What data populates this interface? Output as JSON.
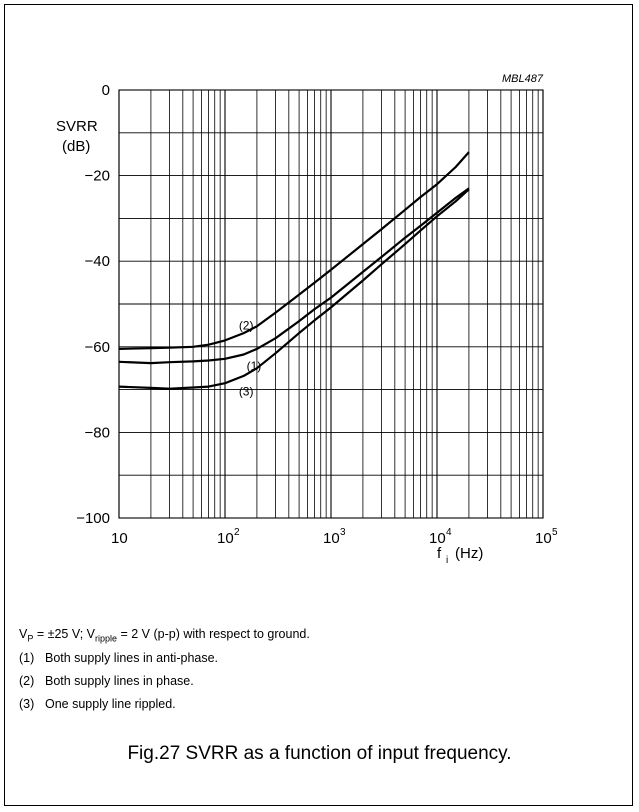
{
  "chart_data": {
    "type": "line",
    "id_code": "MBL487",
    "ylabel": "SVRR",
    "yunit": "(dB)",
    "xlabel": "f",
    "xlabel_sub": "i",
    "xunit": "(Hz)",
    "xscale": "log",
    "xlim": [
      10,
      100000
    ],
    "ylim": [
      -100,
      0
    ],
    "grid": true,
    "x_tick_labels": [
      {
        "value": 10,
        "base": "10",
        "exp": ""
      },
      {
        "value": 100,
        "base": "10",
        "exp": "2"
      },
      {
        "value": 1000,
        "base": "10",
        "exp": "3"
      },
      {
        "value": 10000,
        "base": "10",
        "exp": "4"
      },
      {
        "value": 100000,
        "base": "10",
        "exp": "5"
      }
    ],
    "y_tick_labels": [
      {
        "value": 0,
        "text": "0"
      },
      {
        "value": -20,
        "text": "−20"
      },
      {
        "value": -40,
        "text": "−40"
      },
      {
        "value": -60,
        "text": "−60"
      },
      {
        "value": -80,
        "text": "−80"
      },
      {
        "value": -100,
        "text": "−100"
      }
    ],
    "series": [
      {
        "label": "(1)",
        "label_x": 160,
        "label_y": -64.5,
        "x": [
          10,
          20,
          30,
          50,
          70,
          100,
          150,
          200,
          300,
          500,
          700,
          1000,
          2000,
          3000,
          5000,
          7000,
          10000,
          15000,
          20000
        ],
        "y": [
          -63.5,
          -63.8,
          -63.6,
          -63.4,
          -63.2,
          -62.8,
          -61.8,
          -60.5,
          -58,
          -54,
          -51.2,
          -48.5,
          -42.5,
          -39,
          -34.5,
          -31.7,
          -28.7,
          -25.2,
          -23
        ]
      },
      {
        "label": "(2)",
        "label_x": 135,
        "label_y": -55,
        "x": [
          10,
          20,
          30,
          50,
          70,
          100,
          150,
          200,
          300,
          500,
          700,
          1000,
          2000,
          3000,
          5000,
          7000,
          10000,
          15000,
          20000
        ],
        "y": [
          -60.5,
          -60.3,
          -60.2,
          -60,
          -59.5,
          -58.5,
          -56.8,
          -55.2,
          -52,
          -47.8,
          -45,
          -42,
          -36,
          -32.5,
          -28,
          -25,
          -22,
          -18,
          -14.5
        ]
      },
      {
        "label": "(3)",
        "label_x": 135,
        "label_y": -70.5,
        "x": [
          10,
          20,
          30,
          50,
          70,
          100,
          150,
          200,
          300,
          500,
          700,
          1000,
          2000,
          3000,
          5000,
          7000,
          10000,
          15000,
          20000
        ],
        "y": [
          -69.3,
          -69.6,
          -69.8,
          -69.5,
          -69.3,
          -68.5,
          -66.8,
          -65,
          -61.5,
          -56.8,
          -53.8,
          -50.8,
          -44.5,
          -40.7,
          -36,
          -32.8,
          -29.5,
          -26,
          -23.2
        ]
      }
    ]
  },
  "notes": {
    "conditions": {
      "vp": "V",
      "vp_sub": "P",
      "vp_value": " = ±25 V; V",
      "ripple_sub": "ripple",
      "ripple_value": " = 2 V (p-p) with respect to ground."
    },
    "items": [
      {
        "num": "(1)",
        "text": "Both supply lines in anti-phase."
      },
      {
        "num": "(2)",
        "text": "Both supply lines in phase."
      },
      {
        "num": "(3)",
        "text": "One supply line rippled."
      }
    ]
  },
  "caption": "Fig.27  SVRR as a function of input frequency."
}
